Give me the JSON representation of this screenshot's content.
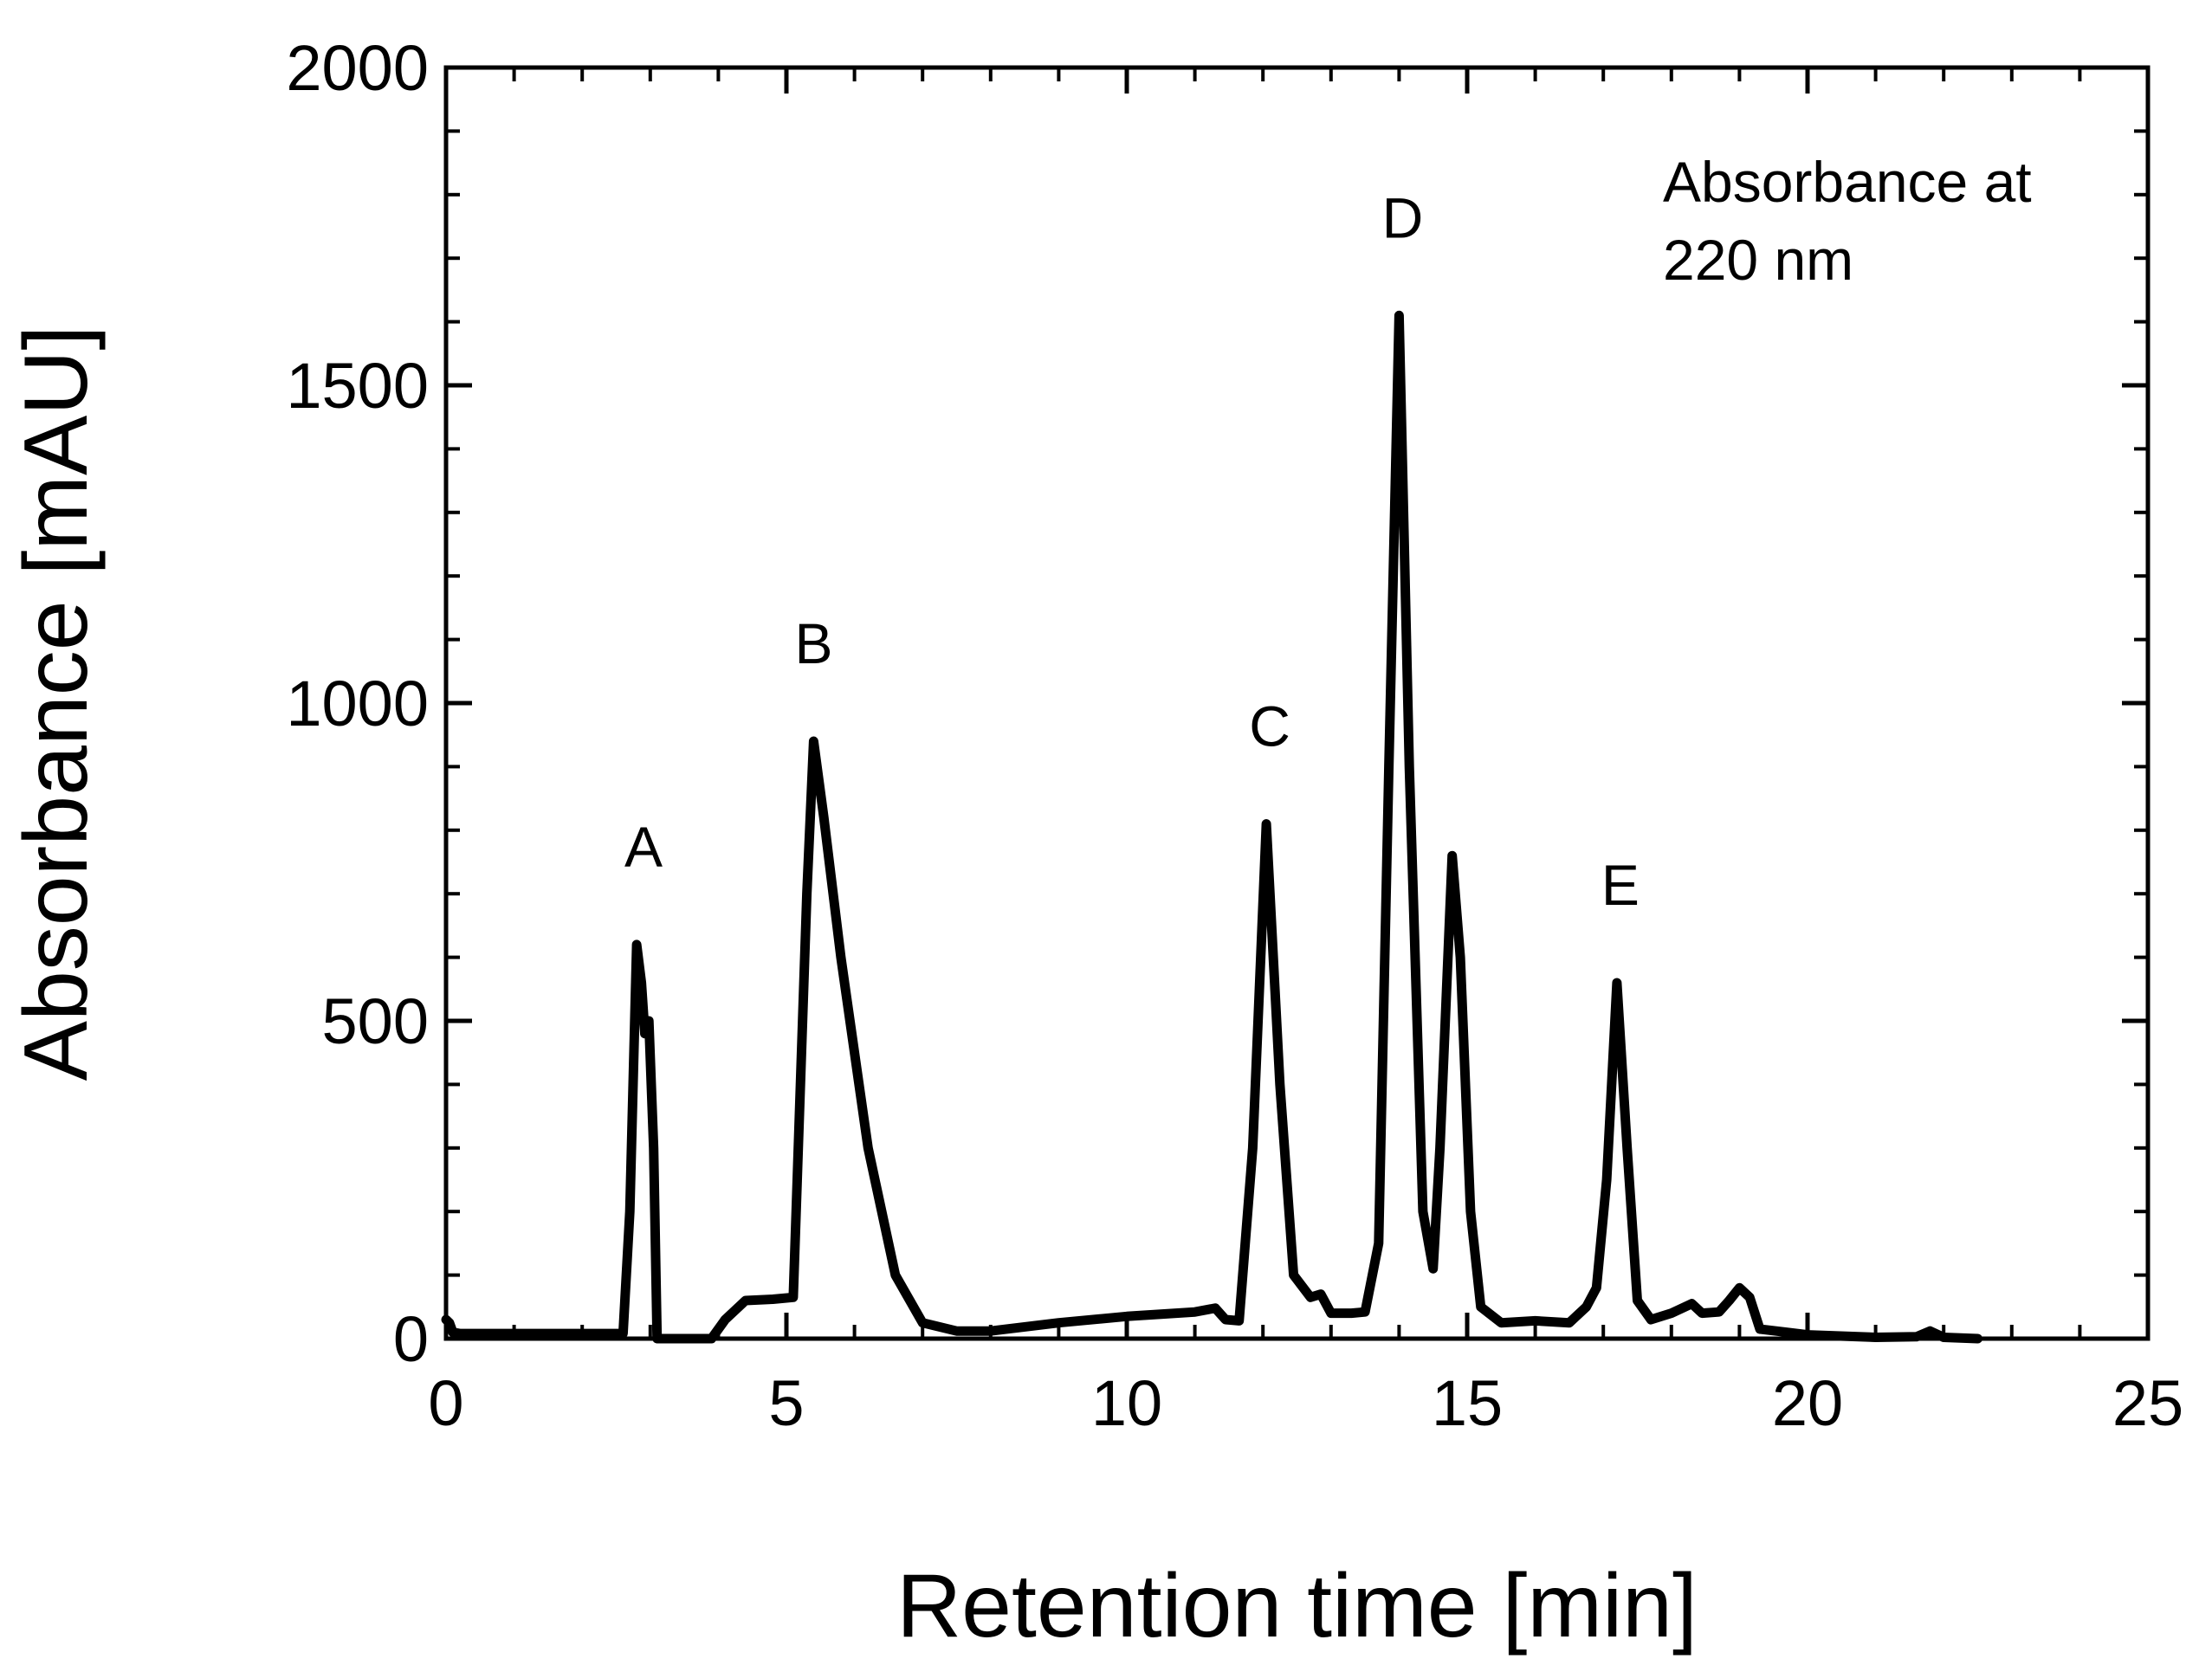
{
  "chart_data": {
    "type": "line",
    "xlabel": "Retention time [min]",
    "ylabel": "Absorbance [mAU]",
    "xlim": [
      0,
      25
    ],
    "ylim": [
      0,
      2000
    ],
    "x_ticks": [
      0,
      5,
      10,
      15,
      20,
      25
    ],
    "x_tick_labels": [
      "0",
      "5",
      "10",
      "15",
      "20",
      "25"
    ],
    "x_minor_step": 1,
    "y_ticks": [
      0,
      500,
      1000,
      1500,
      2000
    ],
    "y_tick_labels": [
      "0",
      "500",
      "1000",
      "1500",
      "2000"
    ],
    "y_minor_step": 100,
    "annotation": [
      "Absorbance at",
      "220 nm"
    ],
    "peaks": [
      {
        "label": "A",
        "x": 2.85,
        "y": 620
      },
      {
        "label": "B",
        "x": 5.35,
        "y": 940
      },
      {
        "label": "C",
        "x": 12.05,
        "y": 810
      },
      {
        "label": "D",
        "x": 14.0,
        "y": 1610
      },
      {
        "label": "E",
        "x": 17.2,
        "y": 560
      }
    ],
    "series": [
      {
        "name": "Absorbance at 220 nm",
        "color": "#000000",
        "points": [
          [
            0.0,
            30
          ],
          [
            0.05,
            25
          ],
          [
            0.1,
            10
          ],
          [
            0.2,
            8
          ],
          [
            2.6,
            8
          ],
          [
            2.7,
            200
          ],
          [
            2.8,
            620
          ],
          [
            2.87,
            560
          ],
          [
            2.92,
            480
          ],
          [
            2.98,
            500
          ],
          [
            3.05,
            300
          ],
          [
            3.1,
            0
          ],
          [
            3.9,
            0
          ],
          [
            4.1,
            30
          ],
          [
            4.4,
            60
          ],
          [
            4.8,
            62
          ],
          [
            5.1,
            65
          ],
          [
            5.3,
            700
          ],
          [
            5.4,
            940
          ],
          [
            5.55,
            820
          ],
          [
            5.8,
            600
          ],
          [
            6.2,
            300
          ],
          [
            6.6,
            100
          ],
          [
            7.0,
            25
          ],
          [
            7.5,
            12
          ],
          [
            8.0,
            12
          ],
          [
            9.0,
            25
          ],
          [
            10.0,
            35
          ],
          [
            11.0,
            42
          ],
          [
            11.3,
            48
          ],
          [
            11.45,
            30
          ],
          [
            11.65,
            28
          ],
          [
            11.85,
            300
          ],
          [
            12.05,
            810
          ],
          [
            12.25,
            400
          ],
          [
            12.45,
            100
          ],
          [
            12.7,
            65
          ],
          [
            12.85,
            70
          ],
          [
            13.0,
            40
          ],
          [
            13.3,
            40
          ],
          [
            13.5,
            42
          ],
          [
            13.7,
            150
          ],
          [
            13.85,
            900
          ],
          [
            14.0,
            1610
          ],
          [
            14.15,
            900
          ],
          [
            14.35,
            200
          ],
          [
            14.5,
            110
          ],
          [
            14.6,
            300
          ],
          [
            14.78,
            760
          ],
          [
            14.9,
            600
          ],
          [
            15.05,
            200
          ],
          [
            15.2,
            50
          ],
          [
            15.5,
            25
          ],
          [
            16.0,
            28
          ],
          [
            16.5,
            25
          ],
          [
            16.75,
            50
          ],
          [
            16.9,
            80
          ],
          [
            17.05,
            250
          ],
          [
            17.2,
            560
          ],
          [
            17.35,
            300
          ],
          [
            17.5,
            60
          ],
          [
            17.7,
            30
          ],
          [
            18.0,
            40
          ],
          [
            18.3,
            55
          ],
          [
            18.45,
            40
          ],
          [
            18.7,
            42
          ],
          [
            18.85,
            60
          ],
          [
            19.0,
            80
          ],
          [
            19.15,
            65
          ],
          [
            19.3,
            15
          ],
          [
            19.7,
            10
          ],
          [
            20.0,
            6
          ],
          [
            21.0,
            2
          ],
          [
            21.6,
            3
          ],
          [
            21.8,
            12
          ],
          [
            22.0,
            2
          ],
          [
            22.5,
            0
          ]
        ]
      }
    ]
  }
}
